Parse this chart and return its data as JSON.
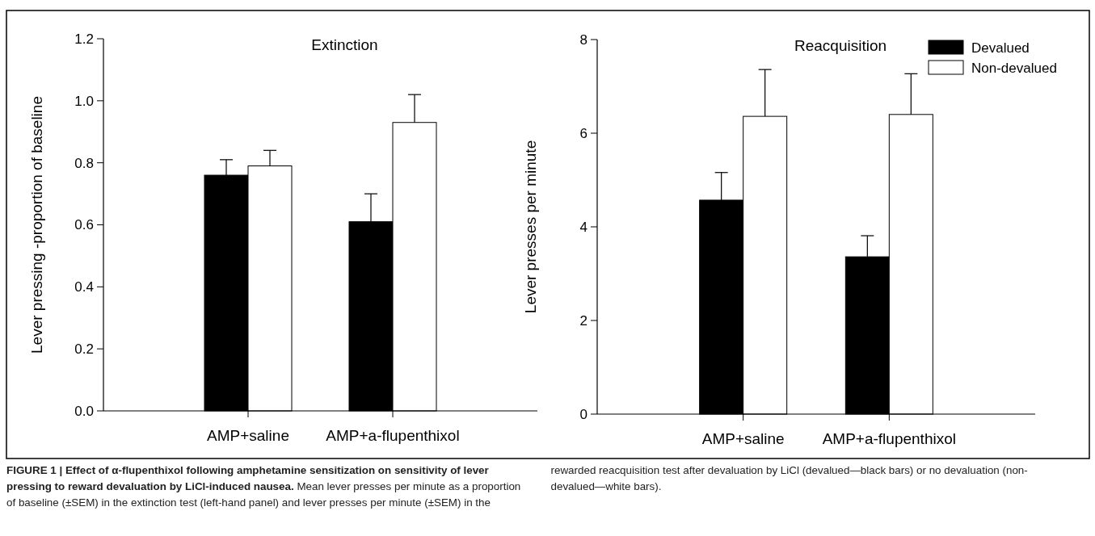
{
  "chart_data": [
    {
      "type": "bar",
      "title": "Extinction",
      "ylabel": "Lever pressing -proportion of baseline",
      "categories": [
        "AMP+saline",
        "AMP+a-flupenthixol"
      ],
      "ylim": [
        0,
        1.2
      ],
      "yticks": [
        {
          "value": 0,
          "label": "0.0"
        },
        {
          "value": 0.2,
          "label": "0.2"
        },
        {
          "value": 0.4,
          "label": "0.4"
        },
        {
          "value": 0.6,
          "label": "0.6"
        },
        {
          "value": 0.8,
          "label": "0.8"
        },
        {
          "value": 1,
          "label": "1.0"
        },
        {
          "value": 1.2,
          "label": "1.2"
        }
      ],
      "legend": false,
      "grid": false,
      "series": [
        {
          "color": "#000000",
          "values": [
            0.76,
            0.61
          ],
          "errors": [
            0.05,
            0.09
          ]
        },
        {
          "color": "#ffffff",
          "values": [
            0.79,
            0.93
          ],
          "errors": [
            0.05,
            0.09
          ]
        }
      ],
      "annotations": [
        "FIGURE 1 | Effect of α-flupenthixol following amphetamine sensitization on sensitivity of lever pressing to reward devaluation by LiCl-induced nausea.",
        "Mean lever presses per minute as a proportion of baseline (±SEM) in the extinction test (left-hand panel) and lever presses per minute (±SEM) in the rewarded reacquisition test after devaluation by LiCl (devalued—black bars) or no devaluation (non-devalued—white bars)."
      ]
    },
    {
      "type": "bar",
      "title": "Reacquisition",
      "ylabel": "Lever presses per minute",
      "categories": [
        "AMP+saline",
        "AMP+a-flupenthixol"
      ],
      "ylim": [
        0,
        8
      ],
      "yticks": [
        0,
        2,
        4,
        6,
        8
      ],
      "legend": "top right",
      "grid": false,
      "series": [
        {
          "name": "Devalued",
          "color": "#000000",
          "values": [
            4.57,
            3.36
          ],
          "errors": [
            0.59,
            0.45
          ]
        },
        {
          "name": "Non-devalued",
          "color": "#ffffff",
          "values": [
            6.36,
            6.4
          ],
          "errors": [
            1.0,
            0.87
          ]
        }
      ]
    }
  ]
}
